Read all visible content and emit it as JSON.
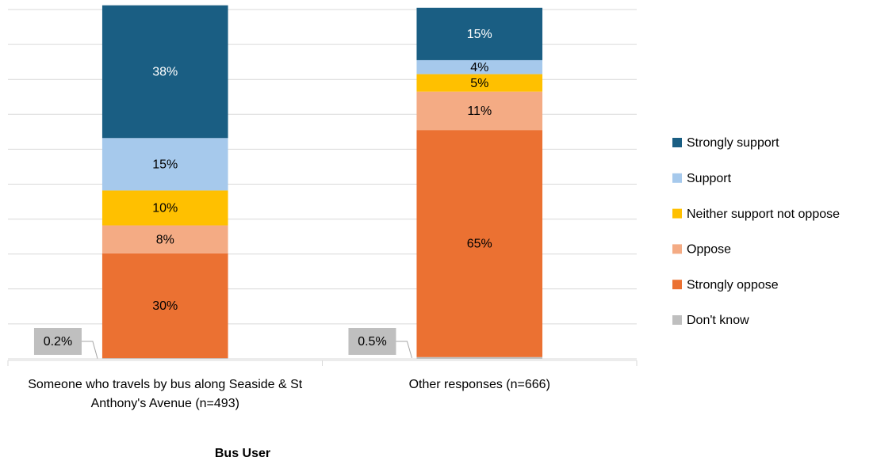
{
  "chart_data": {
    "type": "stacked_bar",
    "x_label": "Bus User",
    "categories": [
      "Someone who travels by bus along Seaside & St Anthony's Avenue (n=493)",
      "Other responses (n=666)"
    ],
    "series": [
      {
        "name": "Don't know",
        "color": "#bfbfbf",
        "values": [
          0.2,
          0.5
        ],
        "value_labels": [
          "0.2%",
          "0.5%"
        ]
      },
      {
        "name": "Strongly oppose",
        "color": "#eb7132",
        "values": [
          30,
          65
        ],
        "value_labels": [
          "30%",
          "65%"
        ]
      },
      {
        "name": "Oppose",
        "color": "#f4ab84",
        "values": [
          8,
          11
        ],
        "value_labels": [
          "8%",
          "11%"
        ]
      },
      {
        "name": "Neither support not oppose",
        "color": "#ffc000",
        "values": [
          10,
          5
        ],
        "value_labels": [
          "10%",
          "5%"
        ]
      },
      {
        "name": "Support",
        "color": "#a6c9ec",
        "values": [
          15,
          4
        ],
        "value_labels": [
          "15%",
          "4%"
        ]
      },
      {
        "name": "Strongly support",
        "color": "#1a5e83",
        "values": [
          38,
          15
        ],
        "value_labels": [
          "38%",
          "15%"
        ]
      }
    ],
    "ylim": [
      0,
      100
    ],
    "yticks": [
      0,
      10,
      20,
      30,
      40,
      50,
      60,
      70,
      80,
      90,
      100
    ],
    "grid": true,
    "legend": "right"
  }
}
